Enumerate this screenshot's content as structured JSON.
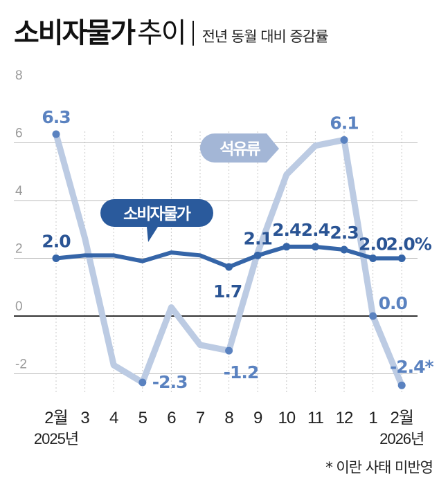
{
  "header": {
    "title_bold": "소비자물가",
    "title_light": "추이",
    "subtitle": "전년 동월 대비 증감률"
  },
  "footnote": "* 이란 사태 미반영",
  "colors": {
    "cpi": "#3565a8",
    "cpi_label": "#2a5494",
    "petroleum": "#bccbe3",
    "petroleum_marker": "#5a82c0",
    "petroleum_label": "#5a82c0",
    "cpi_badge": "#2a5a9c",
    "petroleum_badge": "#a3b6d6",
    "grid": "#bbbbbb",
    "zero_line": "#333333",
    "axis_text": "#999999"
  },
  "chart_data": {
    "type": "line",
    "title": "소비자물가 추이",
    "subtitle": "전년 동월 대비 증감률",
    "xlabel": "",
    "ylabel": "%",
    "ylim": [
      -2.8,
      8
    ],
    "yticks": [
      8,
      6,
      4,
      2,
      0,
      -2
    ],
    "grid": true,
    "categories": [
      "2월",
      "3",
      "4",
      "5",
      "6",
      "7",
      "8",
      "9",
      "10",
      "11",
      "12",
      "1",
      "2월"
    ],
    "year_labels": [
      {
        "index": 0,
        "label": "2025년"
      },
      {
        "index": 12,
        "label": "2026년"
      }
    ],
    "series": [
      {
        "name": "소비자물가",
        "values": [
          2.0,
          2.1,
          2.1,
          1.9,
          2.2,
          2.1,
          1.7,
          2.1,
          2.4,
          2.4,
          2.3,
          2.0,
          2.0
        ],
        "labels": [
          "2.0",
          null,
          null,
          null,
          null,
          null,
          "1.7",
          "2.1",
          "2.4",
          "2.4",
          "2.3",
          "2.0",
          "2.0%"
        ],
        "markers": [
          0,
          6,
          7,
          8,
          9,
          10,
          11,
          12
        ]
      },
      {
        "name": "석유류",
        "values": [
          6.3,
          2.7,
          -1.7,
          -2.3,
          0.3,
          -1.0,
          -1.2,
          2.2,
          4.9,
          5.9,
          6.1,
          0.0,
          -2.4
        ],
        "labels": [
          "6.3",
          null,
          null,
          "-2.3",
          null,
          null,
          "-1.2",
          null,
          null,
          null,
          "6.1",
          "0.0",
          "-2.4*"
        ],
        "markers": [
          0,
          3,
          6,
          10,
          11,
          12
        ]
      }
    ],
    "annotations": [
      "소비자물가",
      "석유류",
      "* 이란 사태 미반영"
    ]
  }
}
